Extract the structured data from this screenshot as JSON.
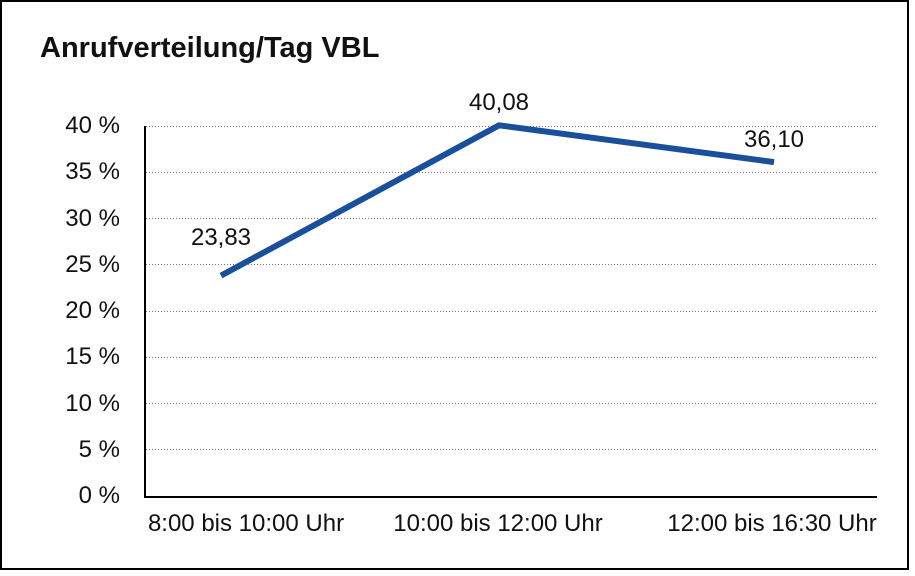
{
  "chart_data": {
    "type": "line",
    "title": "Anrufverteilung/Tag VBL",
    "categories": [
      "8:00 bis 10:00 Uhr",
      "10:00 bis 12:00 Uhr",
      "12:00 bis 16:30 Uhr"
    ],
    "series": [
      {
        "values": [
          23.83,
          40.08,
          36.1
        ],
        "display_labels": [
          "23,83",
          "40,08",
          "36,10"
        ],
        "color": "#1a4f9c"
      }
    ],
    "xlabel": "",
    "ylabel": "",
    "ylim": [
      0,
      40
    ],
    "y_ticks": [
      {
        "value": 40,
        "label": "40 %"
      },
      {
        "value": 35,
        "label": "35 %"
      },
      {
        "value": 30,
        "label": "30 %"
      },
      {
        "value": 25,
        "label": "25 %"
      },
      {
        "value": 20,
        "label": "20 %"
      },
      {
        "value": 15,
        "label": "15 %"
      },
      {
        "value": 10,
        "label": "10 %"
      },
      {
        "value": 5,
        "label": "5 %"
      },
      {
        "value": 0,
        "label": "0 %"
      }
    ],
    "grid": "horizontal-dotted",
    "legend": "none",
    "colors": {
      "line": "#1a4f9c",
      "gridline": "#767676",
      "axis": "#000000",
      "text": "#111111",
      "background": "#ffffff",
      "border": "#000000"
    }
  }
}
